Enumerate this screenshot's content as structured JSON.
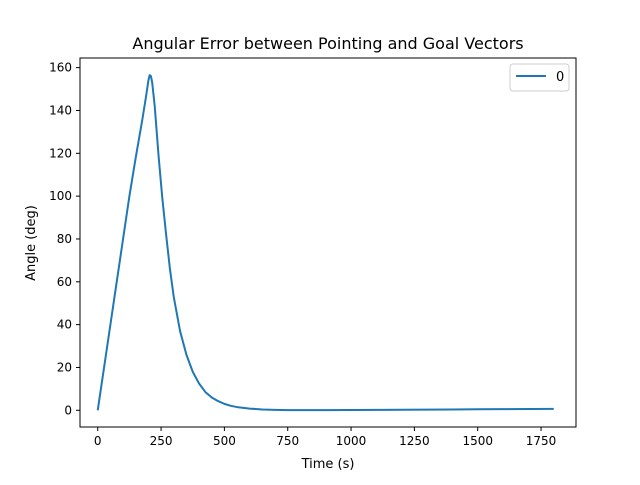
{
  "chart_data": {
    "type": "line",
    "title": "Angular Error between Pointing and Goal Vectors",
    "xlabel": "Time (s)",
    "ylabel": "Angle (deg)",
    "xlim": [
      -70,
      1888
    ],
    "ylim": [
      -7.8,
      164.5
    ],
    "xticks": [
      0,
      250,
      500,
      750,
      1000,
      1250,
      1500,
      1750
    ],
    "yticks": [
      0,
      20,
      40,
      60,
      80,
      100,
      120,
      140,
      160
    ],
    "grid": false,
    "legend_position": "top-right",
    "series": [
      {
        "name": "0",
        "color": "#1f77b4",
        "x": [
          0,
          25,
          50,
          75,
          100,
          125,
          150,
          175,
          190,
          200,
          205,
          210,
          215,
          225,
          240,
          255,
          270,
          285,
          300,
          325,
          350,
          375,
          400,
          425,
          450,
          475,
          500,
          525,
          550,
          600,
          650,
          700,
          750,
          800,
          900,
          1000,
          1100,
          1200,
          1300,
          1400,
          1500,
          1600,
          1700,
          1800
        ],
        "values": [
          0,
          20,
          40,
          60,
          80,
          100,
          118,
          135,
          146,
          154,
          156.5,
          156,
          153,
          142,
          119,
          99,
          82,
          66,
          53,
          37,
          26,
          18,
          12.5,
          8.5,
          6,
          4.3,
          3.0,
          2.1,
          1.5,
          0.8,
          0.4,
          0.2,
          0.1,
          0.1,
          0.1,
          0.15,
          0.2,
          0.25,
          0.3,
          0.4,
          0.5,
          0.55,
          0.6,
          0.65
        ]
      }
    ]
  }
}
